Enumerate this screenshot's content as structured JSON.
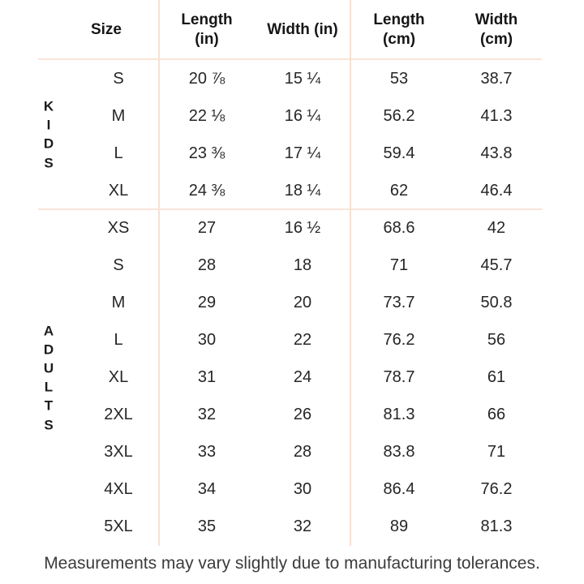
{
  "table": {
    "headers": [
      {
        "line1": "Size",
        "line2": ""
      },
      {
        "line1": "Length",
        "line2": "(in)"
      },
      {
        "line1": "Width (in)",
        "line2": ""
      },
      {
        "line1": "Length",
        "line2": "(cm)"
      },
      {
        "line1": "Width",
        "line2": "(cm)"
      }
    ],
    "groups": [
      {
        "label": "KIDS",
        "rows": [
          {
            "size": "S",
            "length_in": "20 ⅞",
            "width_in": "15 ¼",
            "length_cm": "53",
            "width_cm": "38.7"
          },
          {
            "size": "M",
            "length_in": "22 ⅛",
            "width_in": "16 ¼",
            "length_cm": "56.2",
            "width_cm": "41.3"
          },
          {
            "size": "L",
            "length_in": "23 ⅜",
            "width_in": "17 ¼",
            "length_cm": "59.4",
            "width_cm": "43.8"
          },
          {
            "size": "XL",
            "length_in": "24 ⅜",
            "width_in": "18 ¼",
            "length_cm": "62",
            "width_cm": "46.4"
          }
        ]
      },
      {
        "label": "ADULTS",
        "rows": [
          {
            "size": "XS",
            "length_in": "27",
            "width_in": "16 ½",
            "length_cm": "68.6",
            "width_cm": "42"
          },
          {
            "size": "S",
            "length_in": "28",
            "width_in": "18",
            "length_cm": "71",
            "width_cm": "45.7"
          },
          {
            "size": "M",
            "length_in": "29",
            "width_in": "20",
            "length_cm": "73.7",
            "width_cm": "50.8"
          },
          {
            "size": "L",
            "length_in": "30",
            "width_in": "22",
            "length_cm": "76.2",
            "width_cm": "56"
          },
          {
            "size": "XL",
            "length_in": "31",
            "width_in": "24",
            "length_cm": "78.7",
            "width_cm": "61"
          },
          {
            "size": "2XL",
            "length_in": "32",
            "width_in": "26",
            "length_cm": "81.3",
            "width_cm": "66"
          },
          {
            "size": "3XL",
            "length_in": "33",
            "width_in": "28",
            "length_cm": "83.8",
            "width_cm": "71"
          },
          {
            "size": "4XL",
            "length_in": "34",
            "width_in": "30",
            "length_cm": "86.4",
            "width_cm": "76.2"
          },
          {
            "size": "5XL",
            "length_in": "35",
            "width_in": "32",
            "length_cm": "89",
            "width_cm": "81.3"
          }
        ]
      }
    ]
  },
  "footer": {
    "note": "Measurements may vary slightly due to manufacturing tolerances."
  },
  "colors": {
    "divider_line": "#f8e0d3",
    "header_text": "#161616",
    "body_text": "#262626",
    "footer_text": "#3c3c3c",
    "background": "#ffffff"
  },
  "chart_data": {
    "type": "table",
    "columns": [
      "Size",
      "Length (in)",
      "Width (in)",
      "Length (cm)",
      "Width (cm)"
    ],
    "groups": [
      {
        "name": "KIDS",
        "rows": [
          [
            "S",
            "20 ⅞",
            "15 ¼",
            "53",
            "38.7"
          ],
          [
            "M",
            "22 ⅛",
            "16 ¼",
            "56.2",
            "41.3"
          ],
          [
            "L",
            "23 ⅜",
            "17 ¼",
            "59.4",
            "43.8"
          ],
          [
            "XL",
            "24 ⅜",
            "18 ¼",
            "62",
            "46.4"
          ]
        ]
      },
      {
        "name": "ADULTS",
        "rows": [
          [
            "XS",
            "27",
            "16 ½",
            "68.6",
            "42"
          ],
          [
            "S",
            "28",
            "18",
            "71",
            "45.7"
          ],
          [
            "M",
            "29",
            "20",
            "73.7",
            "50.8"
          ],
          [
            "L",
            "30",
            "22",
            "76.2",
            "56"
          ],
          [
            "XL",
            "31",
            "24",
            "78.7",
            "61"
          ],
          [
            "2XL",
            "32",
            "26",
            "81.3",
            "66"
          ],
          [
            "3XL",
            "33",
            "28",
            "83.8",
            "71"
          ],
          [
            "4XL",
            "34",
            "30",
            "86.4",
            "76.2"
          ],
          [
            "5XL",
            "35",
            "32",
            "89",
            "81.3"
          ]
        ]
      }
    ]
  }
}
